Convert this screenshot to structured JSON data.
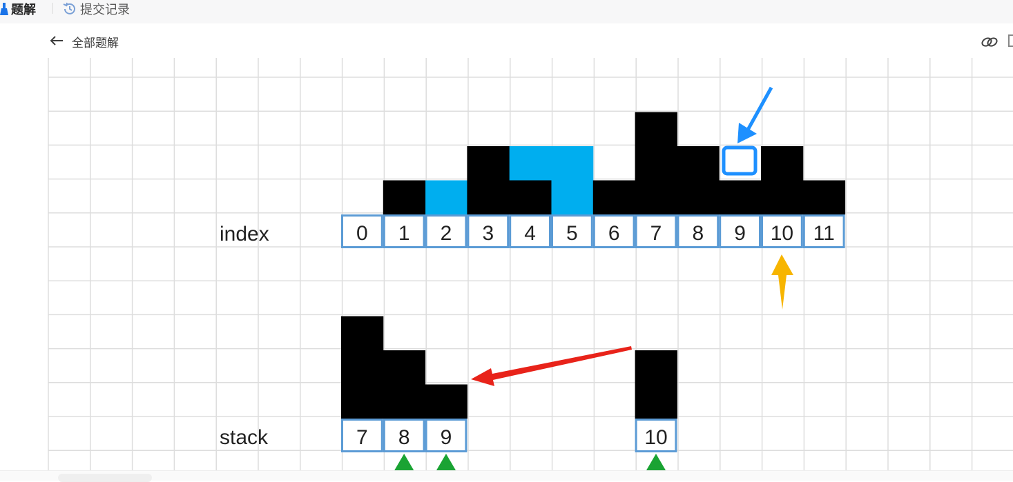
{
  "tabs": {
    "solution_label": "题解",
    "submissions_label": "提交记录"
  },
  "subheader": {
    "back_label": "全部题解"
  },
  "diagram": {
    "index_label": "index",
    "stack_label": "stack",
    "index_cells": [
      "0",
      "1",
      "2",
      "3",
      "4",
      "5",
      "6",
      "7",
      "8",
      "9",
      "10",
      "11"
    ],
    "stack_cells": [
      "7",
      "8",
      "9",
      "10"
    ],
    "colors": {
      "block": "#000000",
      "water": "#00aeef",
      "cell_border": "#5b9bd5",
      "grid": "#dddddd",
      "arrow_blue": "#1e90ff",
      "arrow_orange": "#f7b500",
      "arrow_red": "#e8231a",
      "marker_green": "#1aa333"
    }
  }
}
